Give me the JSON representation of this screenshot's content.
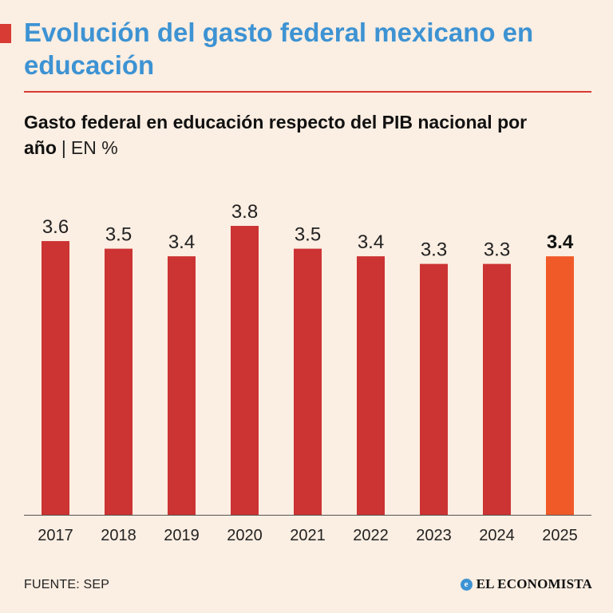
{
  "title": "Evolución del gasto federal mexicano en educación",
  "subtitle": {
    "main": "Gasto federal en educación respecto del PIB nacional por año",
    "separator": "|",
    "unit": "EN %"
  },
  "source": "FUENTE: SEP",
  "brand": {
    "name": "EL ECONOMISTA",
    "icon": "e-logo-icon"
  },
  "colors": {
    "background": "#fbeee2",
    "bar": "#cc3333",
    "highlight_bar": "#f05a28",
    "title": "#3d93d3",
    "accent": "#d83a34"
  },
  "chart_data": {
    "type": "bar",
    "categories": [
      "2017",
      "2018",
      "2019",
      "2020",
      "2021",
      "2022",
      "2023",
      "2024",
      "2025"
    ],
    "values": [
      3.6,
      3.5,
      3.4,
      3.8,
      3.5,
      3.4,
      3.3,
      3.3,
      3.4
    ],
    "value_labels": [
      "3.6",
      "3.5",
      "3.4",
      "3.8",
      "3.5",
      "3.4",
      "3.3",
      "3.3",
      "3.4"
    ],
    "highlight_index": 8,
    "ylim": [
      0,
      3.8
    ],
    "grid": false,
    "xlabel": "",
    "ylabel": ""
  }
}
